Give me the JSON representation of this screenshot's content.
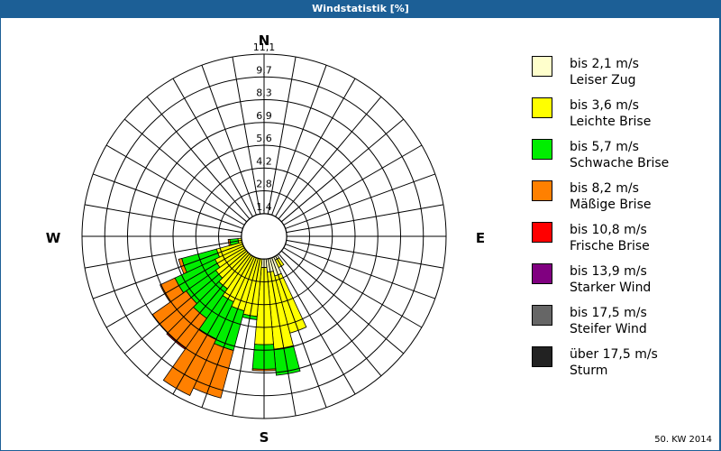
{
  "title": "Windstatistik [%]",
  "footer": "50. KW 2014",
  "compass": {
    "n": "N",
    "e": "E",
    "s": "S",
    "w": "W"
  },
  "ring_labels": [
    "1,4",
    "2,8",
    "4,2",
    "5,6",
    "6,9",
    "8,3",
    "9,7",
    "11,1"
  ],
  "legend": [
    {
      "range": "bis 2,1 m/s",
      "name": "Leiser Zug",
      "color": "#ffffcc"
    },
    {
      "range": "bis 3,6 m/s",
      "name": "Leichte Brise",
      "color": "#ffff00"
    },
    {
      "range": "bis 5,7 m/s",
      "name": "Schwache Brise",
      "color": "#00ee00"
    },
    {
      "range": "bis 8,2 m/s",
      "name": "Mäßige Brise",
      "color": "#ff8000"
    },
    {
      "range": "bis 10,8 m/s",
      "name": "Frische Brise",
      "color": "#ff0000"
    },
    {
      "range": "bis 13,9 m/s",
      "name": "Starker Wind",
      "color": "#800080"
    },
    {
      "range": "bis 17,5 m/s",
      "name": "Steifer Wind",
      "color": "#666666"
    },
    {
      "range": "über 17,5 m/s",
      "name": "Sturm",
      "color": "#222222"
    }
  ],
  "chart_data": {
    "type": "polar-stacked-bar (wind rose)",
    "title": "Windstatistik [%]",
    "subtitle": "50. KW 2014",
    "unit": "%",
    "radial_ticks": [
      1.4,
      2.8,
      4.2,
      5.6,
      6.9,
      8.3,
      9.7,
      11.1
    ],
    "rmax": 11.1,
    "sector_width_deg": 10,
    "directions_deg": [
      150,
      160,
      170,
      180,
      190,
      200,
      210,
      220,
      230,
      240,
      250,
      260,
      270
    ],
    "series": [
      {
        "name": "bis 2,1 m/s Leiser Zug",
        "values": [
          1.6,
          2.5,
          2.2,
          1.9,
          0.6,
          0.4,
          0.3,
          0.3,
          0.3,
          0.3,
          0.3,
          0.2,
          0.3
        ]
      },
      {
        "name": "bis 3,6 m/s Leichte Brise",
        "values": [
          0.5,
          3.6,
          4.7,
          4.7,
          4.3,
          4.3,
          4.1,
          3.6,
          3.3,
          3.0,
          2.7,
          1.4,
          0.2
        ]
      },
      {
        "name": "bis 5,7 m/s Schwache Brise",
        "values": [
          0,
          0,
          1.6,
          1.5,
          0.2,
          2.5,
          2.5,
          2.2,
          2.2,
          2.7,
          2.2,
          0.5,
          0.3
        ]
      },
      {
        "name": "bis 8,2 m/s Mäßige Brise",
        "values": [
          0,
          0,
          0,
          0.1,
          0,
          3.0,
          3.8,
          2.2,
          2.5,
          1.0,
          0.2,
          0.1,
          0
        ]
      },
      {
        "name": "bis 10,8 m/s Frische Brise",
        "values": [
          0,
          0,
          0,
          0,
          0,
          0,
          0,
          0.1,
          0,
          0,
          0,
          0,
          0
        ]
      },
      {
        "name": "bis 13,9 m/s Starker Wind",
        "values": [
          0,
          0,
          0,
          0,
          0,
          0,
          0,
          0,
          0,
          0,
          0,
          0,
          0
        ]
      },
      {
        "name": "bis 17,5 m/s Steifer Wind",
        "values": [
          0,
          0,
          0,
          0,
          0,
          0,
          0,
          0,
          0,
          0,
          0,
          0,
          0
        ]
      },
      {
        "name": "über 17,5 m/s Sturm",
        "values": [
          0,
          0,
          0,
          0,
          0,
          0,
          0,
          0,
          0,
          0,
          0,
          0,
          0
        ]
      }
    ],
    "legend_position": "right"
  }
}
